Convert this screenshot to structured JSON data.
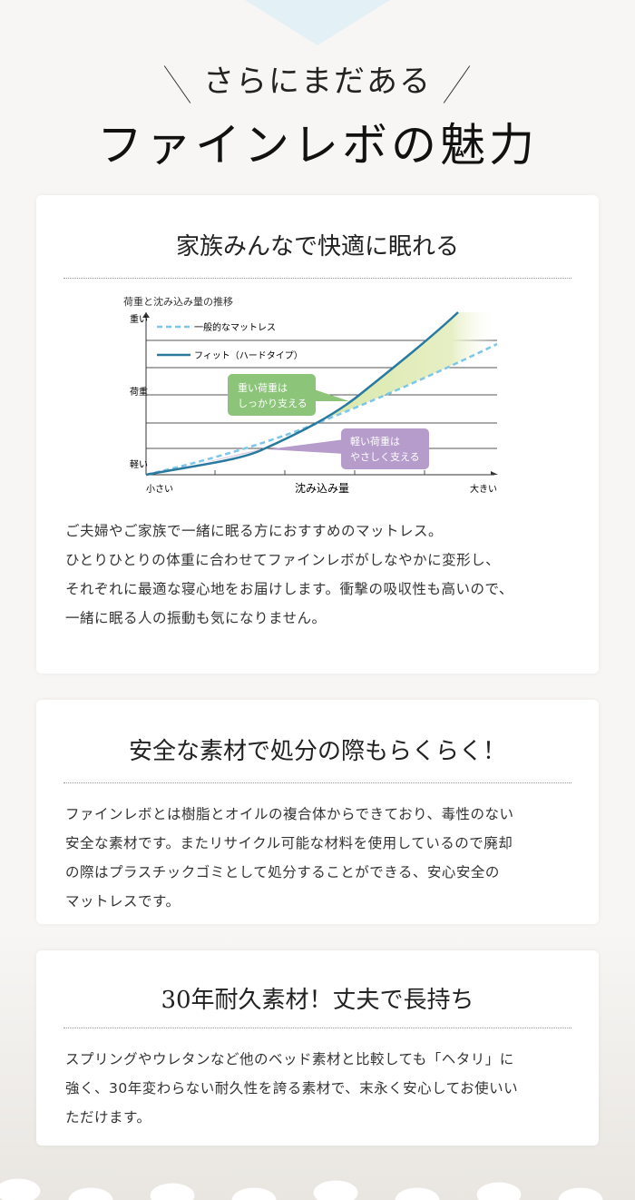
{
  "header": {
    "subtitle": "さらにまだある",
    "title": "ファインレボの魅力"
  },
  "sections": [
    {
      "heading": "家族みんなで快適に眠れる",
      "chart": {
        "title": "荷重と沈み込み量の推移",
        "y_top": "重い",
        "y_mid": "荷重",
        "y_bottom": "軽い",
        "x_left": "小さい",
        "x_mid": "沈み込み量",
        "x_right": "大きい",
        "legend": [
          {
            "label": "一般的なマットレス",
            "color": "#7cc6ea",
            "style": "dashed"
          },
          {
            "label": "フィット（ハードタイプ）",
            "color": "#2a7aa0",
            "style": "solid"
          }
        ],
        "callout_heavy": {
          "line1": "重い荷重は",
          "line2": "しっかり支える",
          "color": "#8cc47a"
        },
        "callout_light": {
          "line1": "軽い荷重は",
          "line2": "やさしく支える",
          "color": "#b59ccb"
        }
      },
      "body": [
        "ご夫婦やご家族で一緒に眠る方におすすめのマットレス。",
        "ひとりひとりの体重に合わせてファインレボがしなやかに変形し、",
        "それぞれに最適な寝心地をお届けします。衝撃の吸収性も高いので、",
        "一緒に眠る人の振動も気になりません。"
      ]
    },
    {
      "heading": "安全な素材で処分の際もらくらく！",
      "body": [
        "ファインレボとは樹脂とオイルの複合体からできており、毒性のない",
        "安全な素材です。またリサイクル可能な材料を使用しているので廃却",
        "の際はプラスチックゴミとして処分することができる、安心安全の",
        "マットレスです。"
      ]
    },
    {
      "heading": "30年耐久素材！丈夫で長持ち",
      "body": [
        "スプリングやウレタンなど他のベッド素材と比較しても「ヘタリ」に",
        "強く、30年変わらない耐久性を誇る素材で、末永く安心してお使いい",
        "ただけます。"
      ]
    }
  ]
}
